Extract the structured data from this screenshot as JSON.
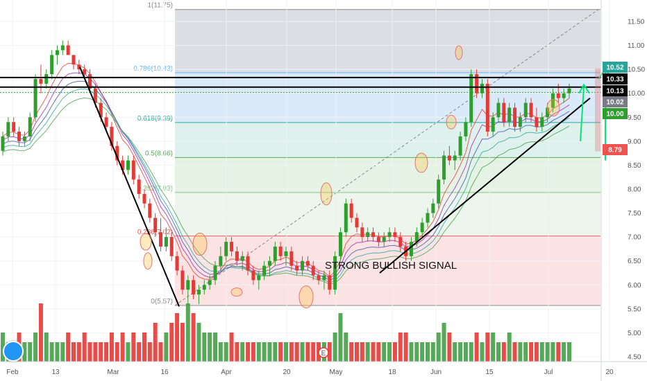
{
  "chart_data": {
    "type": "candlestick",
    "x_tick_labels": [
      "Feb",
      "13",
      "Mar",
      "16",
      "Apr",
      "20",
      "May",
      "18",
      "Jun",
      "15",
      "Jul",
      "20"
    ],
    "y_tick_labels": [
      "11.50",
      "11.00",
      "10.50",
      "10.00",
      "9.50",
      "9.00",
      "8.50",
      "8.00",
      "7.50",
      "7.00",
      "6.50",
      "6.00",
      "5.50",
      "5.00",
      "4.50"
    ],
    "ylim": [
      4.4,
      11.75
    ],
    "fib_levels": [
      {
        "ratio": "1",
        "price": 11.75,
        "label": "1(11.75)",
        "color": "#888888"
      },
      {
        "ratio": "0.786",
        "price": 10.43,
        "label": "0.786(10.43)",
        "color": "#64b5f6"
      },
      {
        "ratio": "0.618",
        "price": 9.39,
        "label": "0.618(9.39)",
        "color": "#26a69a"
      },
      {
        "ratio": "0.5",
        "price": 8.66,
        "label": "0.5(8.66)",
        "color": "#4caf50"
      },
      {
        "ratio": "0.382",
        "price": 7.93,
        "label": "0.382(7.93)",
        "color": "#81c784"
      },
      {
        "ratio": "0.236",
        "price": 7.02,
        "label": "0.236(7.02)",
        "color": "#ef5350"
      },
      {
        "ratio": "0",
        "price": 5.57,
        "label": "0(5.57)",
        "color": "#888888"
      }
    ],
    "price_tags": [
      {
        "value": "10.52",
        "color": "#26a69a"
      },
      {
        "value": "10.33",
        "color": "#000000"
      },
      {
        "value": "10.13",
        "color": "#000000"
      },
      {
        "value": "10.02",
        "color": "#787b86"
      },
      {
        "value": "10.00",
        "color": "#2e9e2e"
      },
      {
        "value": "8.79",
        "color": "#ef5350"
      }
    ],
    "horizontal_lines": [
      10.33,
      10.13
    ],
    "annotation": "STRONG BULLISH SIGNAL",
    "earnings_marker": "E",
    "candles": [
      [
        8.8,
        9.2,
        8.7,
        9.1
      ],
      [
        9.1,
        9.5,
        9.0,
        9.4
      ],
      [
        9.4,
        9.5,
        9.1,
        9.2
      ],
      [
        9.2,
        9.3,
        8.9,
        9.0
      ],
      [
        9.0,
        9.2,
        8.9,
        9.1
      ],
      [
        9.1,
        9.6,
        9.0,
        9.5
      ],
      [
        9.5,
        10.4,
        9.4,
        10.3
      ],
      [
        10.3,
        10.6,
        10.0,
        10.2
      ],
      [
        10.2,
        10.5,
        10.1,
        10.4
      ],
      [
        10.4,
        10.9,
        10.3,
        10.8
      ],
      [
        10.8,
        11.0,
        10.6,
        10.9
      ],
      [
        10.9,
        11.1,
        10.8,
        11.0
      ],
      [
        11.0,
        11.1,
        10.8,
        10.8
      ],
      [
        10.8,
        10.8,
        10.5,
        10.6
      ],
      [
        10.6,
        10.7,
        10.4,
        10.5
      ],
      [
        10.5,
        10.6,
        10.3,
        10.4
      ],
      [
        10.4,
        10.5,
        10.0,
        10.1
      ],
      [
        10.1,
        10.2,
        9.7,
        9.8
      ],
      [
        9.8,
        9.9,
        9.4,
        9.5
      ],
      [
        9.5,
        9.6,
        9.2,
        9.3
      ],
      [
        9.3,
        9.4,
        8.8,
        8.9
      ],
      [
        8.9,
        9.0,
        8.5,
        8.6
      ],
      [
        8.6,
        8.7,
        8.3,
        8.4
      ],
      [
        8.4,
        8.7,
        8.3,
        8.6
      ],
      [
        8.6,
        8.7,
        8.1,
        8.2
      ],
      [
        8.2,
        8.3,
        7.8,
        7.9
      ],
      [
        7.9,
        8.0,
        7.6,
        7.7
      ],
      [
        7.7,
        7.8,
        7.3,
        7.4
      ],
      [
        7.4,
        7.5,
        7.0,
        7.1
      ],
      [
        7.1,
        7.4,
        6.7,
        6.8
      ],
      [
        6.8,
        7.2,
        6.7,
        7.0
      ],
      [
        7.0,
        7.1,
        6.5,
        6.6
      ],
      [
        6.6,
        6.7,
        6.2,
        6.3
      ],
      [
        6.3,
        6.4,
        5.8,
        5.9
      ],
      [
        5.9,
        6.2,
        5.6,
        6.1
      ],
      [
        6.1,
        6.2,
        5.7,
        5.8
      ],
      [
        5.8,
        6.0,
        5.6,
        5.9
      ],
      [
        5.9,
        6.1,
        5.8,
        6.0
      ],
      [
        6.0,
        6.2,
        5.9,
        6.1
      ],
      [
        6.1,
        6.5,
        6.0,
        6.4
      ],
      [
        6.4,
        6.8,
        6.3,
        6.6
      ],
      [
        6.6,
        7.0,
        6.5,
        6.9
      ],
      [
        6.9,
        7.0,
        6.6,
        6.7
      ],
      [
        6.7,
        6.8,
        6.4,
        6.5
      ],
      [
        6.5,
        6.7,
        6.3,
        6.6
      ],
      [
        6.6,
        6.7,
        6.2,
        6.3
      ],
      [
        6.3,
        6.4,
        6.0,
        6.1
      ],
      [
        6.1,
        6.3,
        5.9,
        6.2
      ],
      [
        6.2,
        6.5,
        6.1,
        6.4
      ],
      [
        6.4,
        6.6,
        6.2,
        6.5
      ],
      [
        6.5,
        6.9,
        6.4,
        6.8
      ],
      [
        6.8,
        6.9,
        6.5,
        6.6
      ],
      [
        6.6,
        6.8,
        6.4,
        6.7
      ],
      [
        6.7,
        6.8,
        6.3,
        6.4
      ],
      [
        6.4,
        6.5,
        6.2,
        6.3
      ],
      [
        6.3,
        6.6,
        6.2,
        6.5
      ],
      [
        6.5,
        6.6,
        6.3,
        6.4
      ],
      [
        6.4,
        6.5,
        6.1,
        6.2
      ],
      [
        6.2,
        6.3,
        6.0,
        6.1
      ],
      [
        6.1,
        6.3,
        5.9,
        6.2
      ],
      [
        6.2,
        6.3,
        5.8,
        5.9
      ],
      [
        5.9,
        6.7,
        5.8,
        6.6
      ],
      [
        6.6,
        7.2,
        6.5,
        7.1
      ],
      [
        7.1,
        7.8,
        7.0,
        7.7
      ],
      [
        7.7,
        7.8,
        7.3,
        7.4
      ],
      [
        7.4,
        7.5,
        7.1,
        7.2
      ],
      [
        7.2,
        7.3,
        6.9,
        7.0
      ],
      [
        7.0,
        7.2,
        6.9,
        7.1
      ],
      [
        7.1,
        7.2,
        6.9,
        7.0
      ],
      [
        7.0,
        7.1,
        6.8,
        6.9
      ],
      [
        6.9,
        7.1,
        6.8,
        7.0
      ],
      [
        7.0,
        7.2,
        6.9,
        7.1
      ],
      [
        7.1,
        7.2,
        6.9,
        7.0
      ],
      [
        7.0,
        7.1,
        6.7,
        6.8
      ],
      [
        6.8,
        6.9,
        6.5,
        6.6
      ],
      [
        6.6,
        7.0,
        6.5,
        6.9
      ],
      [
        6.9,
        7.2,
        6.8,
        7.1
      ],
      [
        7.1,
        7.4,
        7.0,
        7.3
      ],
      [
        7.3,
        7.6,
        7.2,
        7.5
      ],
      [
        7.5,
        7.8,
        7.4,
        7.7
      ],
      [
        7.7,
        8.3,
        7.6,
        8.2
      ],
      [
        8.2,
        8.8,
        8.1,
        8.7
      ],
      [
        8.7,
        8.9,
        8.5,
        8.6
      ],
      [
        8.6,
        8.8,
        8.4,
        8.7
      ],
      [
        8.7,
        9.2,
        8.6,
        9.1
      ],
      [
        9.1,
        9.5,
        9.0,
        9.4
      ],
      [
        9.4,
        10.5,
        9.3,
        10.4
      ],
      [
        10.4,
        10.5,
        9.9,
        10.0
      ],
      [
        10.0,
        10.3,
        9.9,
        10.2
      ],
      [
        10.2,
        10.3,
        9.1,
        9.2
      ],
      [
        9.2,
        9.6,
        9.1,
        9.5
      ],
      [
        9.5,
        9.9,
        9.4,
        9.8
      ],
      [
        9.8,
        9.9,
        9.3,
        9.4
      ],
      [
        9.4,
        9.8,
        9.3,
        9.7
      ],
      [
        9.7,
        9.8,
        9.2,
        9.3
      ],
      [
        9.3,
        9.6,
        9.2,
        9.5
      ],
      [
        9.5,
        9.9,
        9.4,
        9.8
      ],
      [
        9.8,
        9.9,
        9.4,
        9.5
      ],
      [
        9.5,
        9.7,
        9.2,
        9.3
      ],
      [
        9.3,
        9.6,
        9.2,
        9.5
      ],
      [
        9.5,
        9.8,
        9.4,
        9.7
      ],
      [
        9.7,
        10.1,
        9.6,
        10.0
      ],
      [
        10.0,
        10.2,
        9.8,
        9.9
      ],
      [
        9.9,
        10.1,
        9.8,
        10.0
      ],
      [
        10.0,
        10.2,
        9.9,
        10.1
      ]
    ],
    "volumes": [
      3,
      2,
      2,
      3,
      2,
      2,
      3,
      6,
      3,
      2,
      2,
      2,
      3,
      2,
      2,
      3,
      2,
      2,
      2,
      2,
      3,
      2,
      3,
      2,
      3,
      2,
      3,
      2,
      4,
      2,
      3,
      4,
      5,
      4,
      6,
      5,
      4,
      3,
      3,
      3,
      2,
      2,
      3,
      2,
      2,
      2,
      2,
      2,
      2,
      2,
      2,
      2,
      2,
      2,
      2,
      2,
      2,
      2,
      2,
      2,
      2,
      3,
      5,
      3,
      2,
      2,
      2,
      2,
      2,
      2,
      2,
      2,
      2,
      3,
      3,
      2,
      2,
      2,
      2,
      2,
      3,
      4,
      3,
      2,
      2,
      2,
      2,
      3,
      2,
      3,
      3,
      2,
      2,
      3,
      2,
      2,
      2,
      2,
      2,
      2,
      2,
      2,
      2,
      2,
      2
    ]
  }
}
